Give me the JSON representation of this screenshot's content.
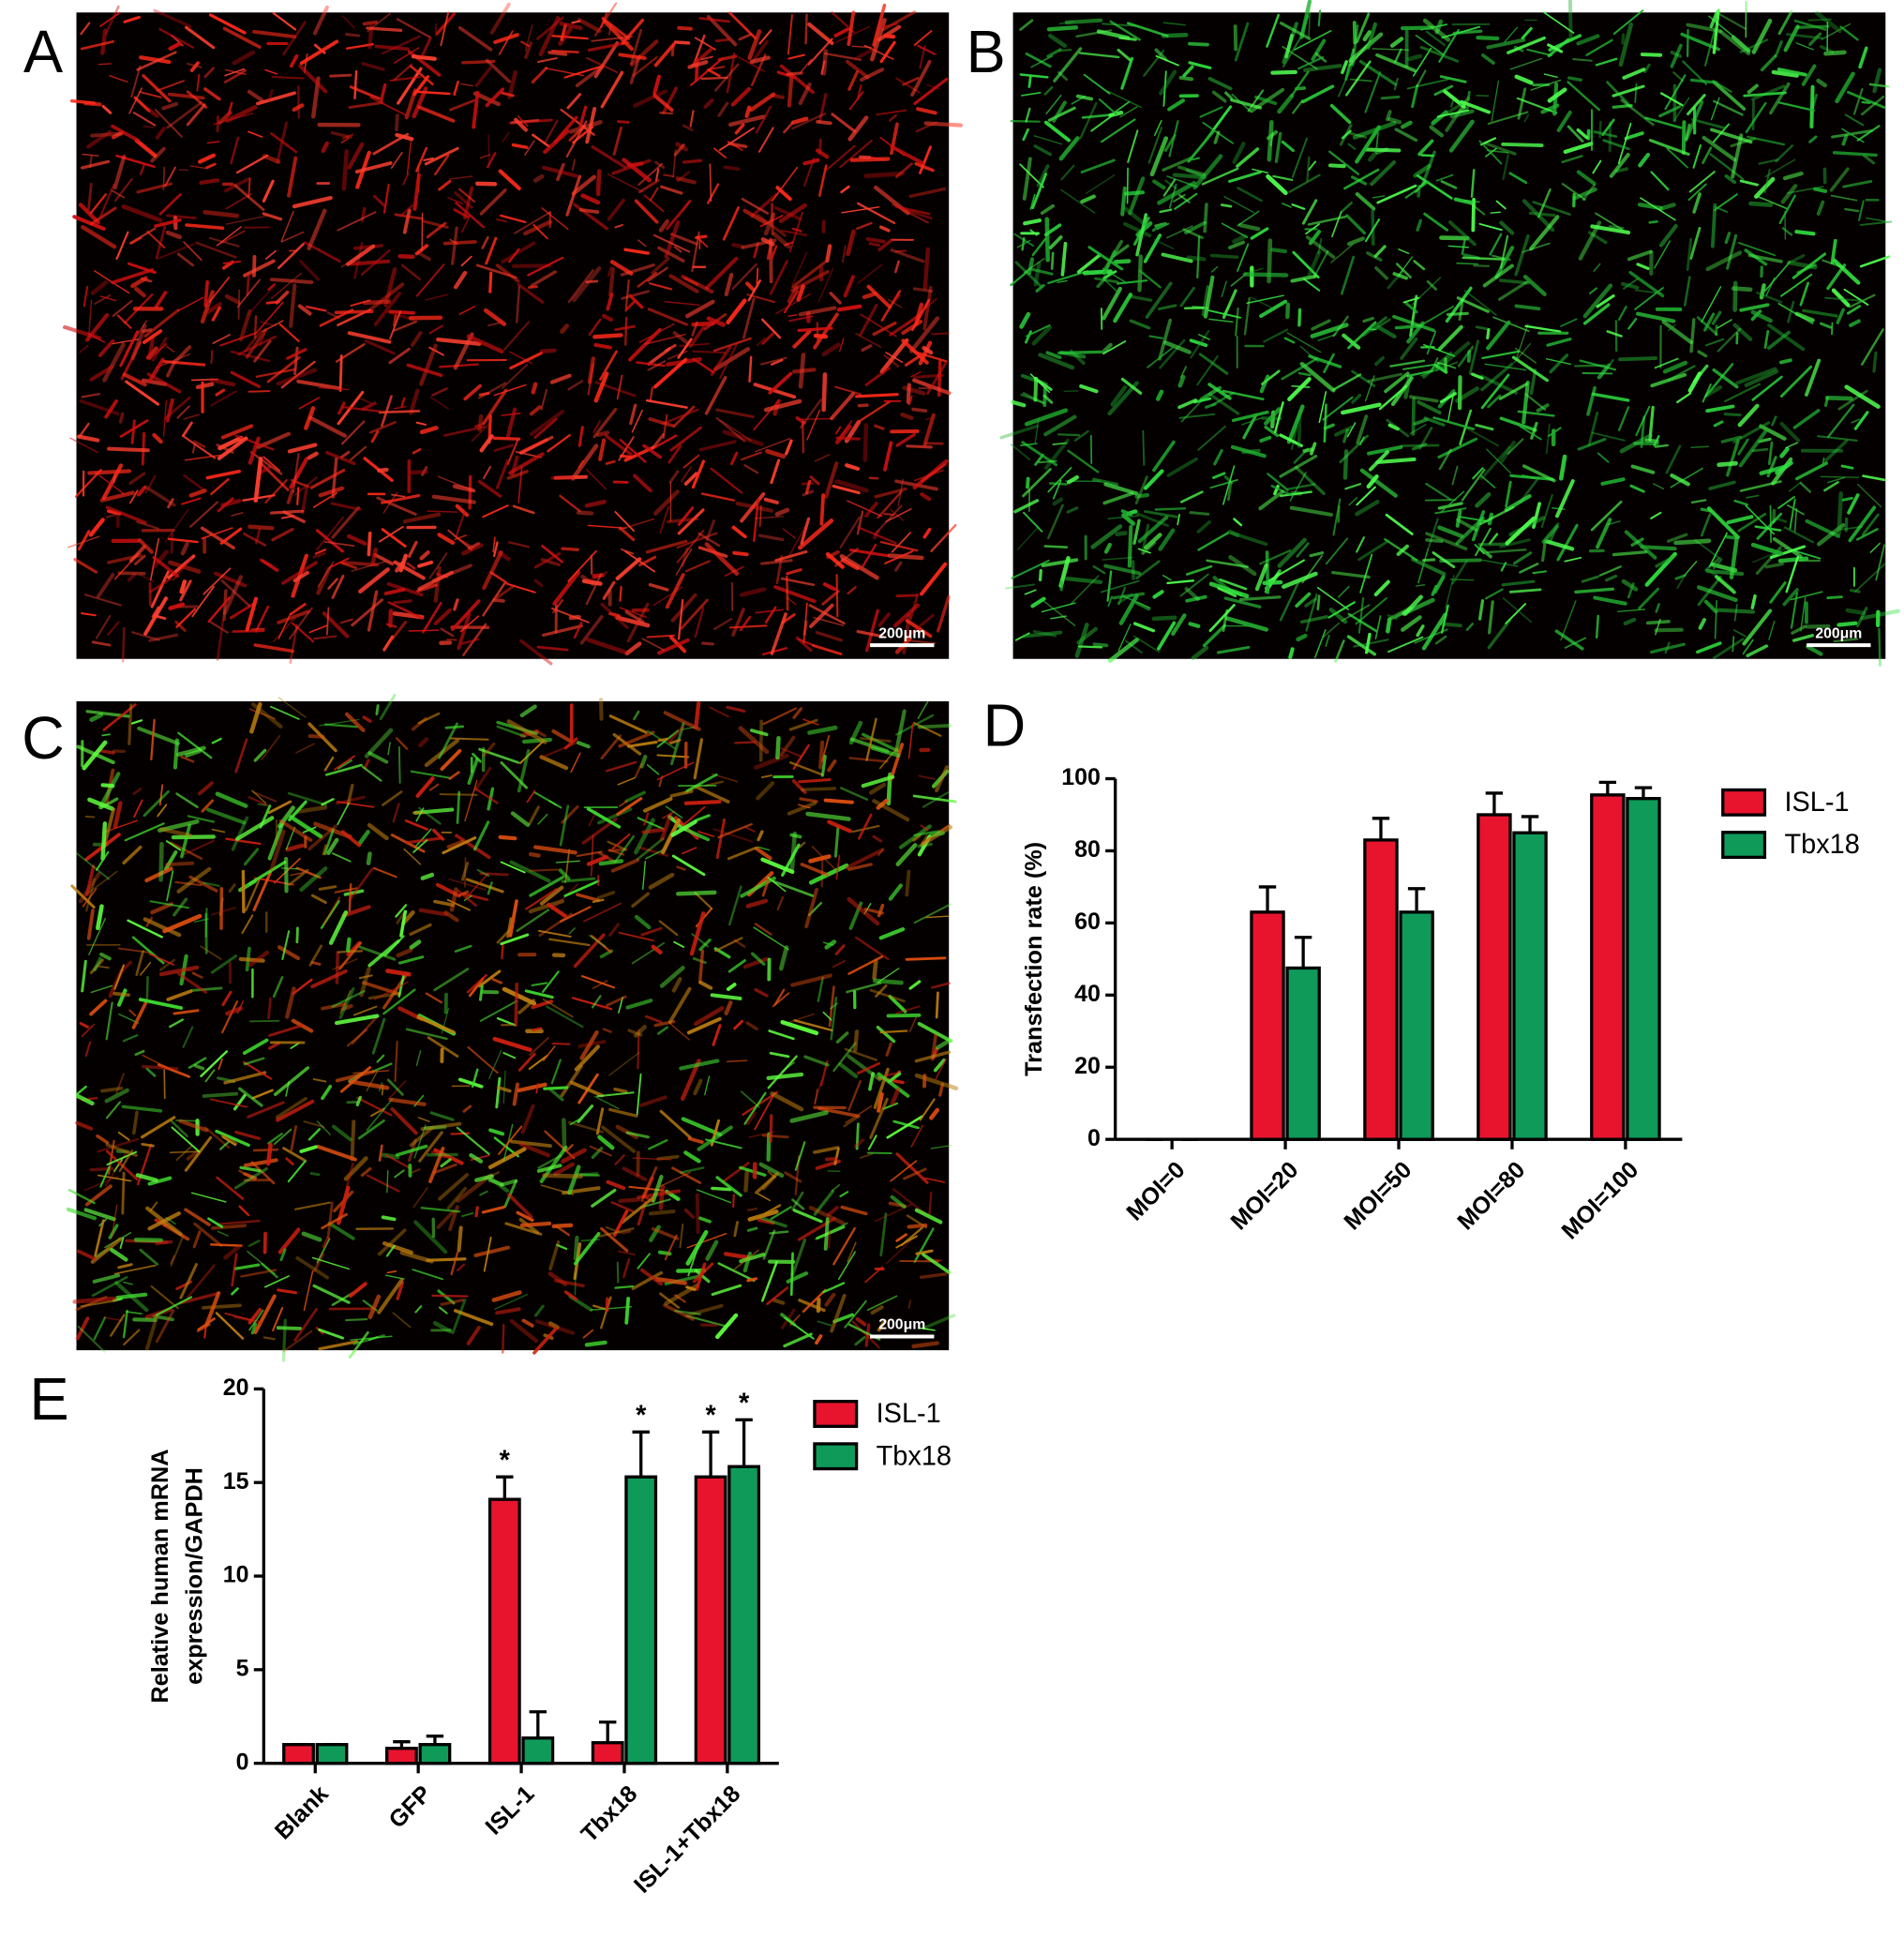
{
  "panels": [
    {
      "label": "A",
      "scale_bar": "200μm"
    },
    {
      "label": "B",
      "scale_bar": "200μm"
    },
    {
      "label": "C",
      "scale_bar": "200μm"
    },
    {
      "label": "D"
    },
    {
      "label": "E"
    }
  ],
  "chart_data": [
    {
      "type": "bar",
      "ylabel": [
        "Transfection rate (%)"
      ],
      "categories": [
        "MOI=0",
        "MOI=20",
        "MOI=50",
        "MOI=80",
        "MOI=100"
      ],
      "series": [
        {
          "name": "ISL-1",
          "color": "#e8142e",
          "values": [
            0,
            63,
            83,
            90,
            95.5
          ],
          "errors": [
            0,
            7,
            6,
            6,
            3.5
          ]
        },
        {
          "name": "Tbx18",
          "color": "#0f9a5a",
          "values": [
            0,
            47.5,
            63,
            85,
            94.5
          ],
          "errors": [
            0,
            8.5,
            6.5,
            4.5,
            3
          ]
        }
      ],
      "ylim": [
        0,
        100
      ],
      "yticks": [
        0,
        20,
        40,
        60,
        80,
        100
      ],
      "legend": "right"
    },
    {
      "type": "bar",
      "ylabel": [
        "Relative human mRNA",
        "expression/GAPDH"
      ],
      "categories": [
        "Blank",
        "GFP",
        "ISL-1",
        "Tbx18",
        "ISL-1+Tbx18"
      ],
      "series": [
        {
          "name": "ISL-1",
          "color": "#e8142e",
          "values": [
            1,
            0.8,
            14.1,
            1.1,
            15.3
          ],
          "errors": [
            0,
            0.35,
            1.2,
            1.1,
            2.4
          ],
          "annotations": [
            null,
            null,
            "*",
            null,
            "*"
          ]
        },
        {
          "name": "Tbx18",
          "color": "#0f9a5a",
          "values": [
            1,
            1,
            1.35,
            15.3,
            15.85
          ],
          "errors": [
            0,
            0.45,
            1.4,
            2.4,
            2.5
          ],
          "annotations": [
            null,
            null,
            null,
            "*",
            "*"
          ]
        }
      ],
      "ylim": [
        0,
        20
      ],
      "yticks": [
        0,
        5,
        10,
        15,
        20
      ],
      "legend": "right"
    }
  ]
}
